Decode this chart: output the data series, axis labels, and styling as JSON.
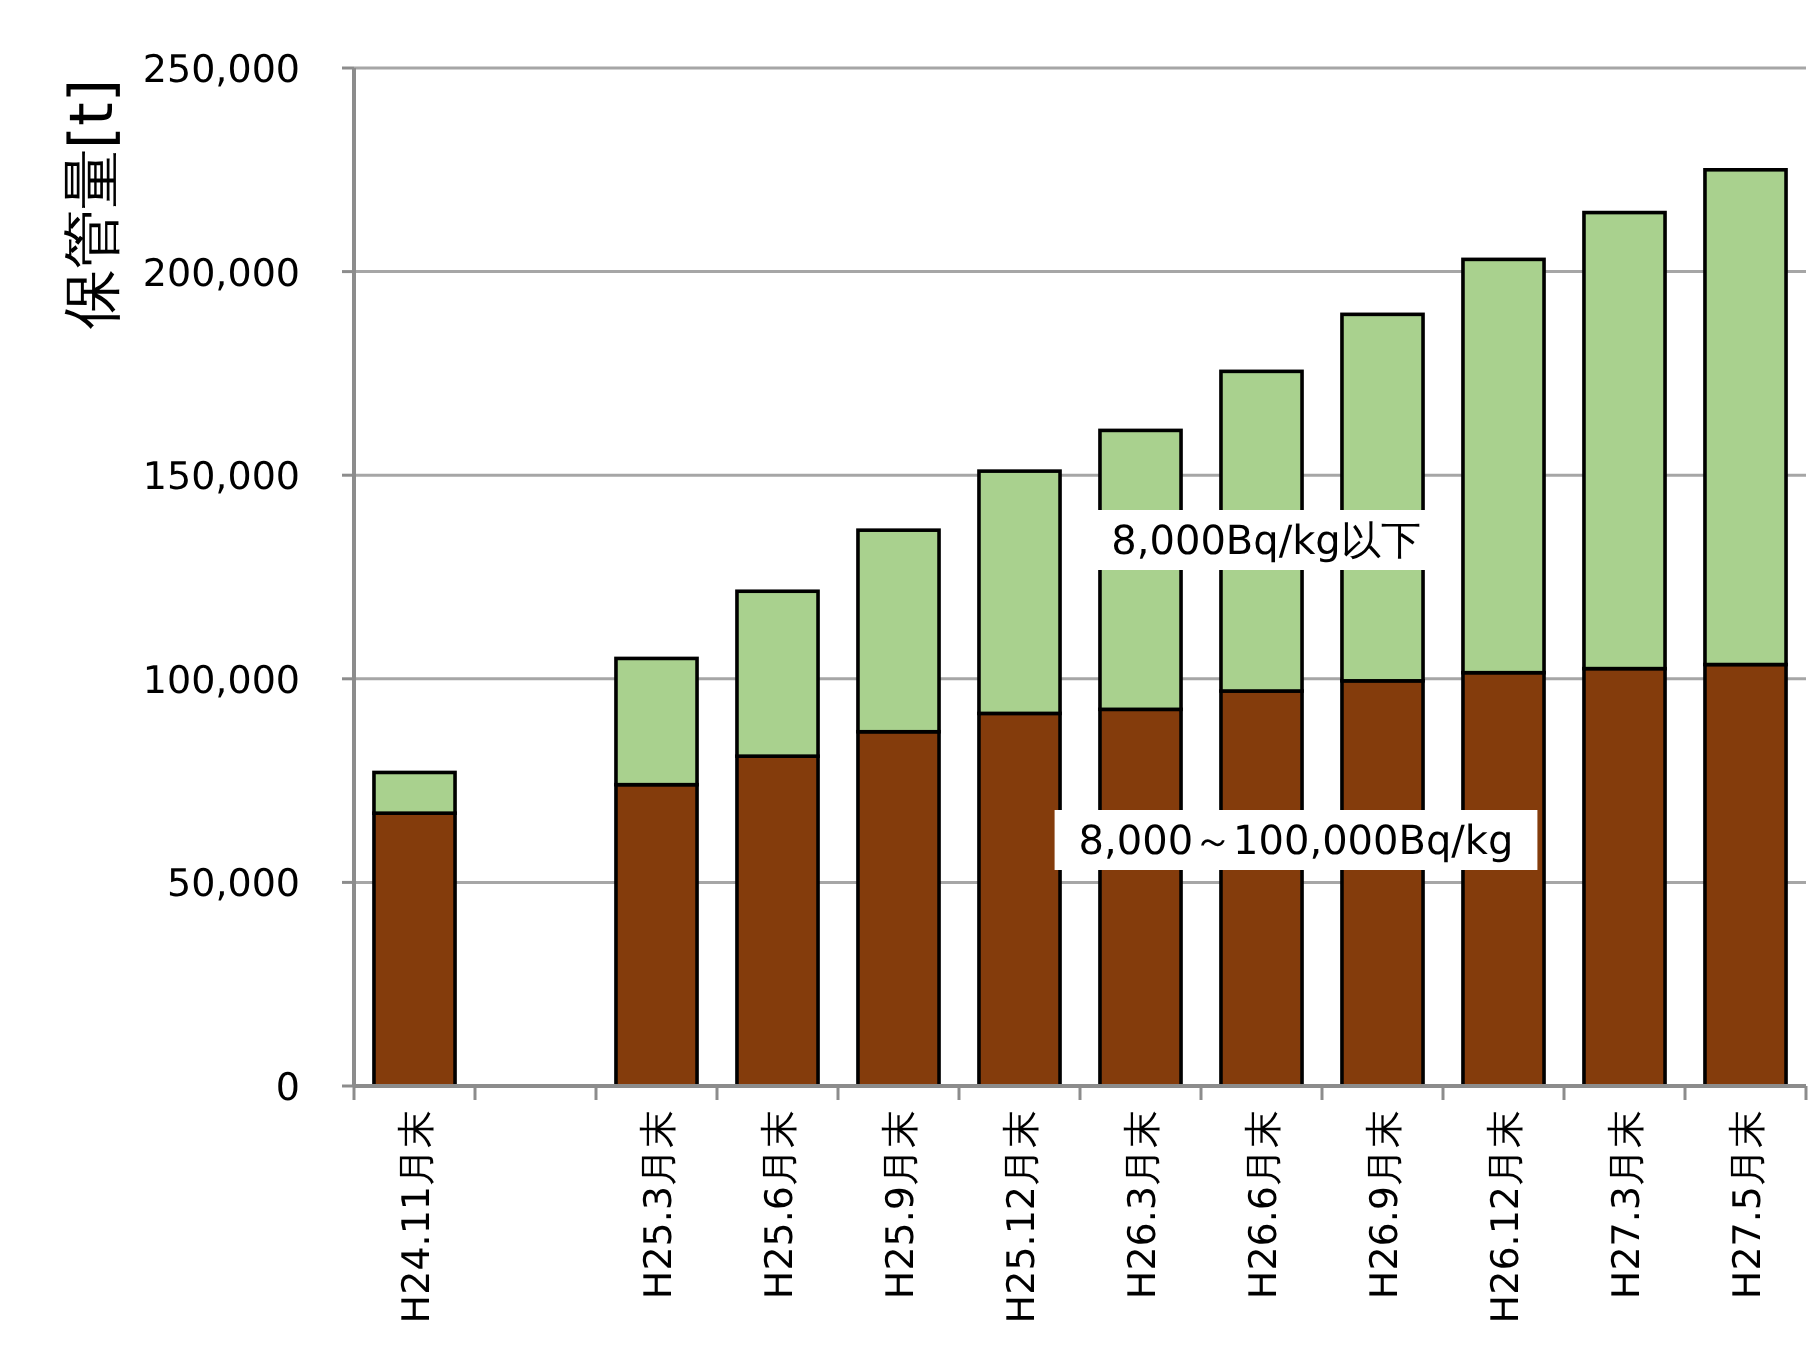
{
  "chart_data": {
    "type": "bar",
    "stacked": true,
    "ylabel": "保管量[t]",
    "categories": [
      "H24.11月末",
      null,
      "H25.3月末",
      "H25.6月末",
      "H25.9月末",
      "H25.12月末",
      "H26.3月末",
      "H26.6月末",
      "H26.9月末",
      "H26.12月末",
      "H27.3月末",
      "H27.5月末"
    ],
    "series": [
      {
        "name": "8,000～100,000Bq/kg",
        "color": "#843c0c",
        "values": [
          67000,
          null,
          74000,
          81000,
          87000,
          91500,
          92500,
          97000,
          99500,
          101500,
          102500,
          103500
        ]
      },
      {
        "name": "8,000Bq/kg以下",
        "color": "#a9d18e",
        "values": [
          10000,
          null,
          31000,
          40500,
          49500,
          59500,
          68500,
          78500,
          90000,
          101500,
          112000,
          121500
        ]
      }
    ],
    "ylim": [
      0,
      250000
    ],
    "yticks": [
      {
        "value": 0,
        "label": "0"
      },
      {
        "value": 50000,
        "label": "50,000"
      },
      {
        "value": 100000,
        "label": "100,000"
      },
      {
        "value": 150000,
        "label": "150,000"
      },
      {
        "value": 200000,
        "label": "200,000"
      },
      {
        "value": 250000,
        "label": "250,000"
      }
    ],
    "grid": "y"
  }
}
